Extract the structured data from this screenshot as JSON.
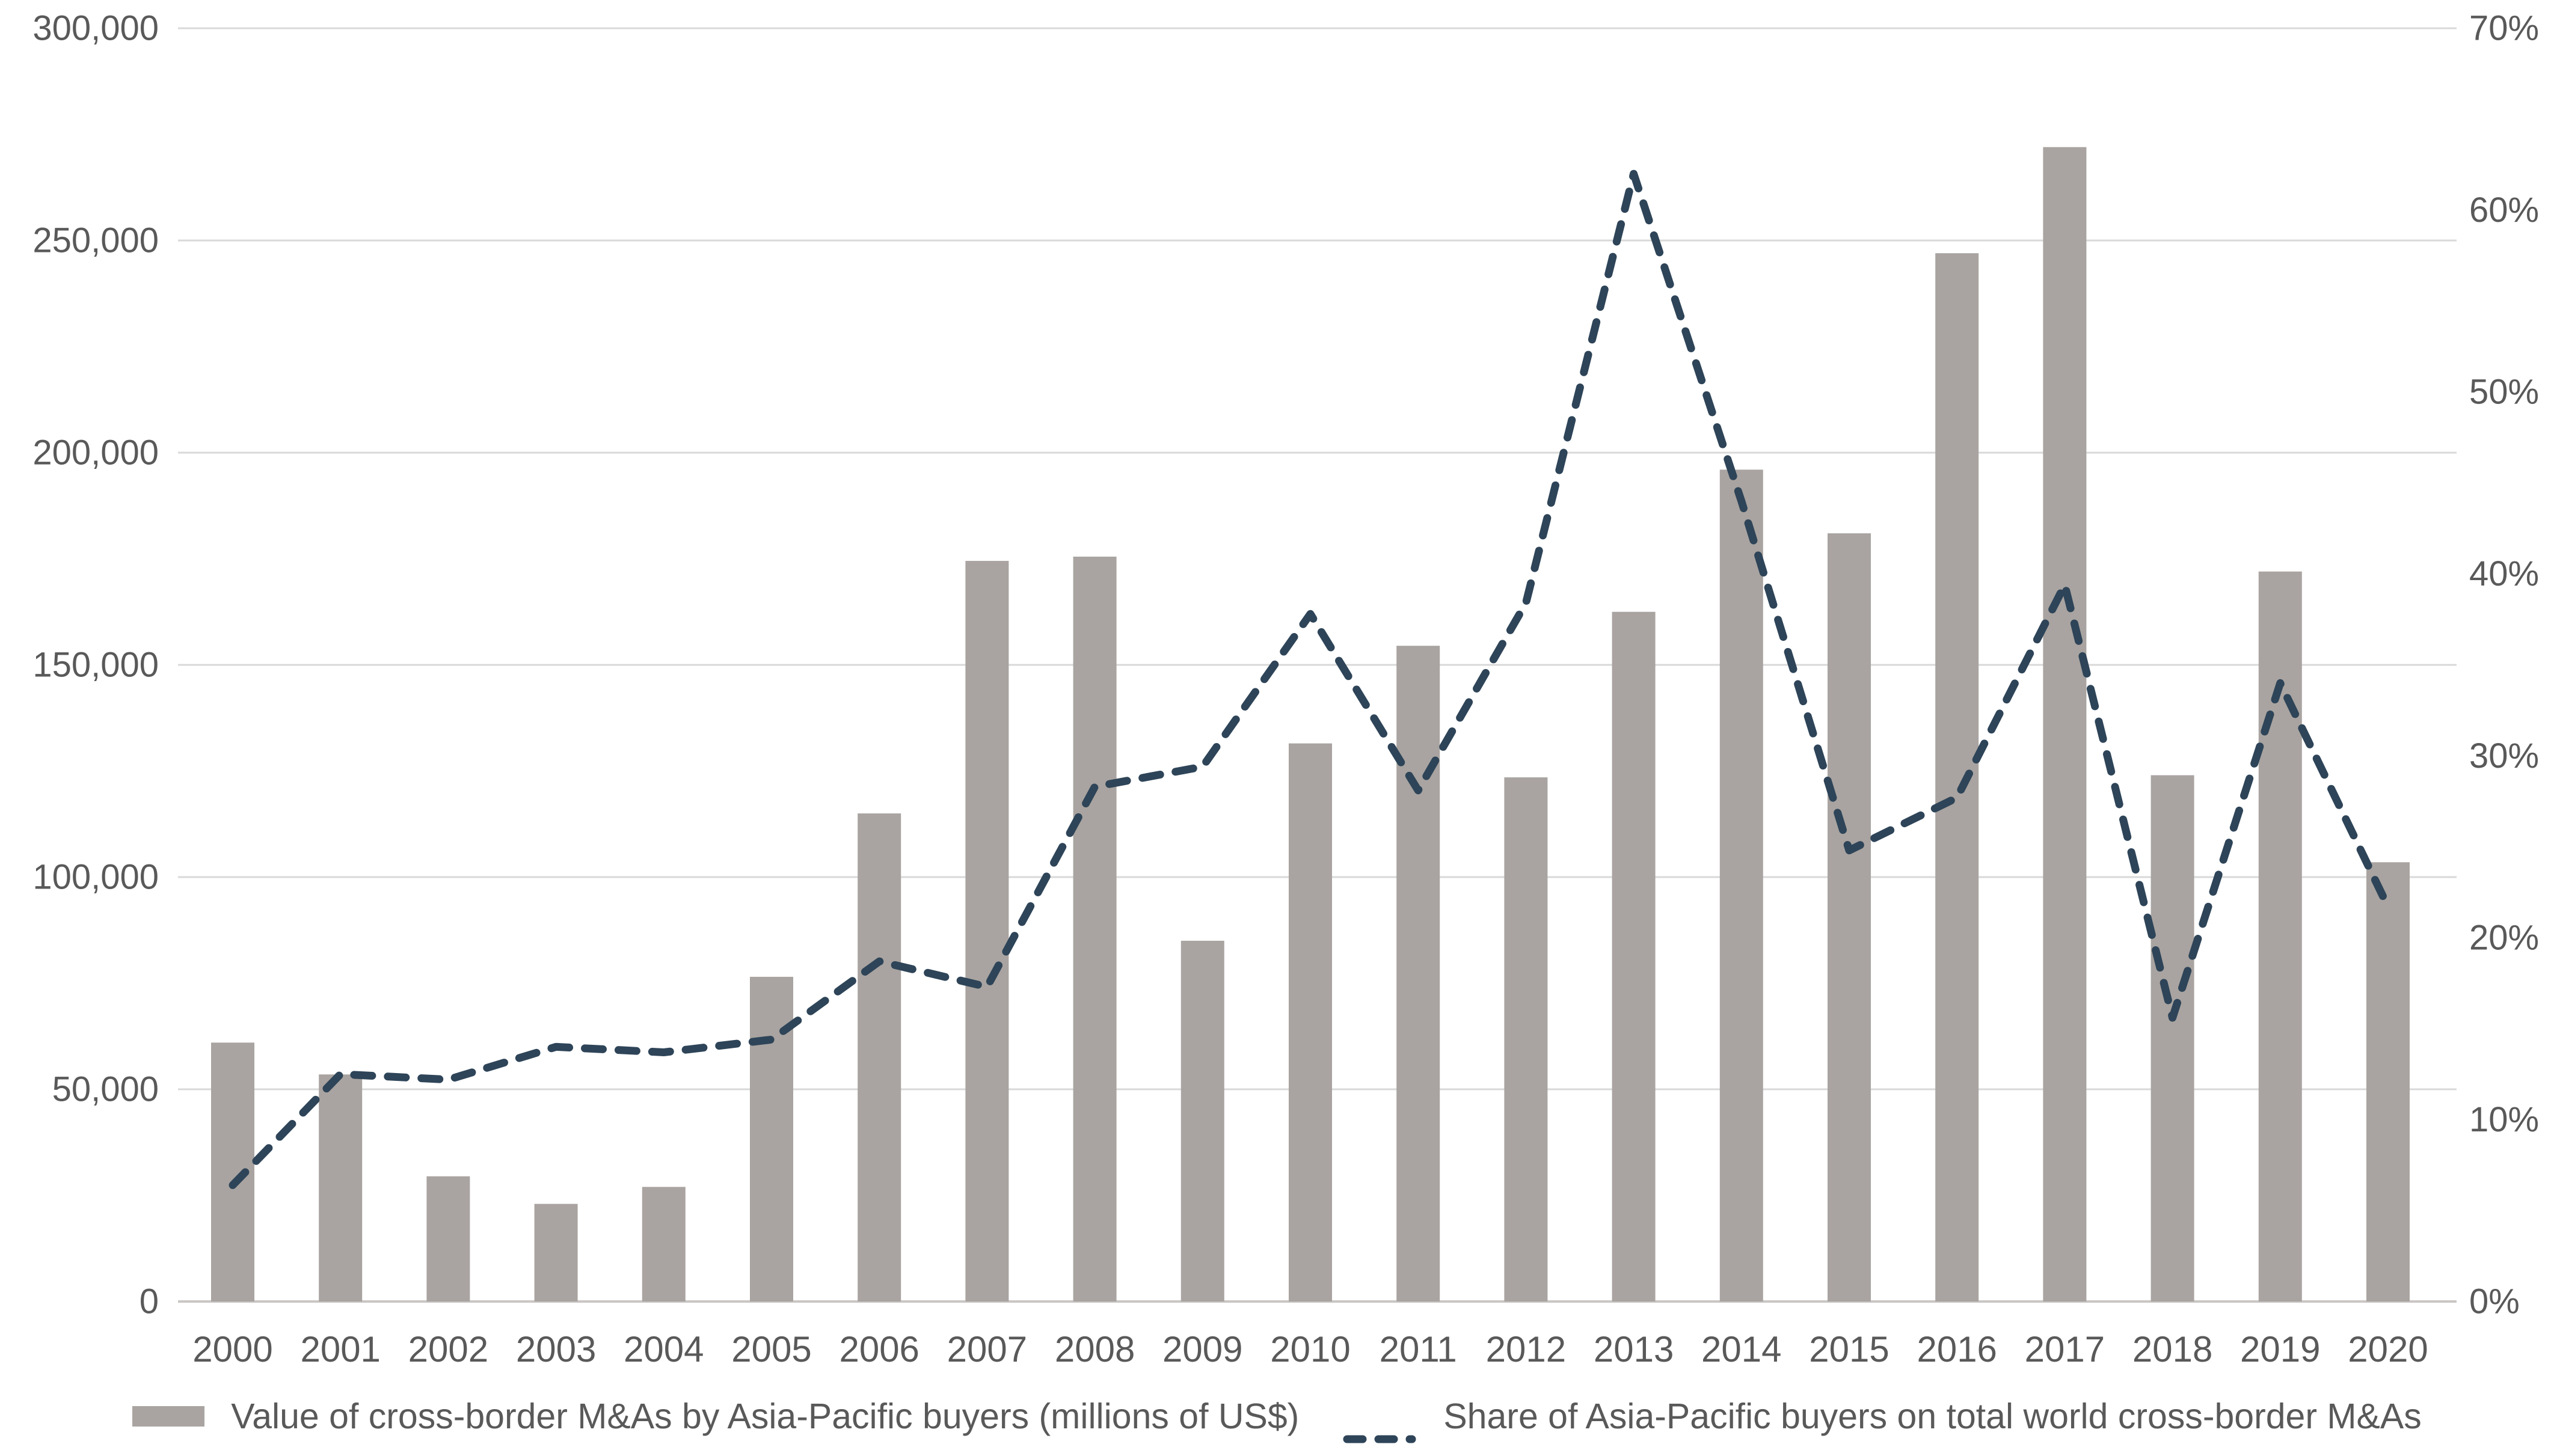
{
  "page": {
    "background": "#ffffff"
  },
  "chart_data": {
    "type": "bar",
    "subtype": "combo-bar-and-dashed-line",
    "title": "",
    "categories": [
      "2000",
      "2001",
      "2002",
      "2003",
      "2004",
      "2005",
      "2006",
      "2007",
      "2008",
      "2009",
      "2010",
      "2011",
      "2012",
      "2013",
      "2014",
      "2015",
      "2016",
      "2017",
      "2018",
      "2019",
      "2020"
    ],
    "series": [
      {
        "name": "Value of cross-border M&As by Asia-Pacific buyers (millions of US$)",
        "type": "bar",
        "axis": "left",
        "color": "#a9a4a1",
        "values": [
          61000,
          53500,
          29500,
          23000,
          27000,
          76500,
          115000,
          174500,
          175500,
          85000,
          131500,
          154500,
          123500,
          162500,
          196000,
          181000,
          247000,
          272000,
          124000,
          172000,
          103500
        ]
      },
      {
        "name": "Share of Asia-Pacific buyers on total world cross-border M&As",
        "type": "line",
        "line_style": "dashed",
        "axis": "right",
        "color": "#2e4458",
        "values": [
          6.4,
          12.5,
          12.2,
          14.0,
          13.7,
          14.4,
          18.7,
          17.3,
          28.3,
          29.4,
          37.8,
          28.1,
          38.4,
          62.0,
          44.0,
          24.8,
          27.7,
          39.4,
          15.6,
          34.0,
          21.7
        ]
      }
    ],
    "left_axis": {
      "min": 0,
      "max": 300000,
      "step": 50000,
      "tick_labels": [
        "300,000",
        "250,000",
        "200,000",
        "150,000",
        "100,000",
        "50,000",
        "0"
      ]
    },
    "right_axis": {
      "min": 0,
      "max": 70,
      "step": 10,
      "tick_labels": [
        "70%",
        "60%",
        "50%",
        "40%",
        "30%",
        "20%",
        "10%",
        "0%"
      ]
    },
    "grid": {
      "horizontal": true,
      "vertical": false,
      "color": "#d9d9d9"
    },
    "baseline_color": "#c9c6c4",
    "axis_text_color": "#595959",
    "legend_position": "bottom"
  }
}
